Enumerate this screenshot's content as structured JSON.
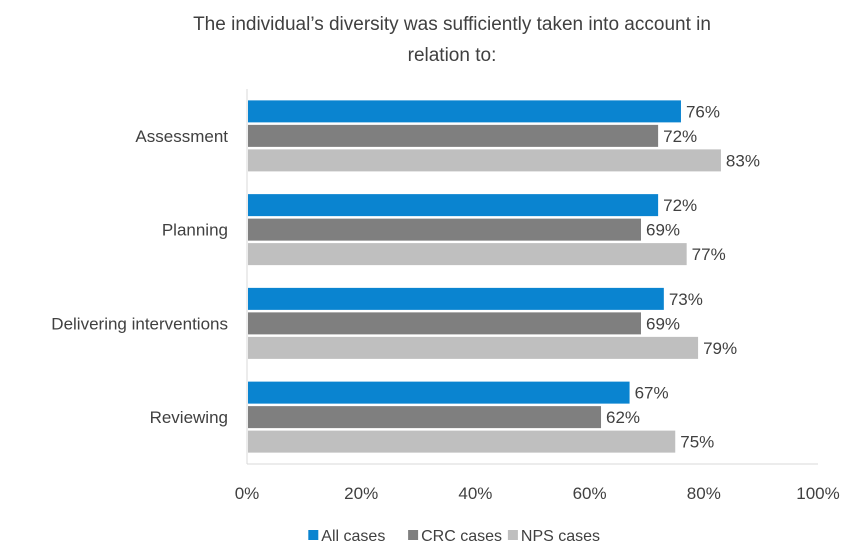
{
  "chart_data": {
    "type": "bar",
    "orientation": "horizontal",
    "title": "The individual’s diversity was sufficiently taken into account in relation to:",
    "categories": [
      "Assessment",
      "Planning",
      "Delivering interventions",
      "Reviewing"
    ],
    "series": [
      {
        "name": "All cases",
        "color": "#0a84d0",
        "values": [
          76,
          72,
          73,
          67
        ],
        "labels": [
          "76%",
          "72%",
          "73%",
          "67%"
        ]
      },
      {
        "name": "CRC cases",
        "color": "#7f7f7f",
        "values": [
          72,
          69,
          69,
          62
        ],
        "labels": [
          "72%",
          "69%",
          "69%",
          "62%"
        ]
      },
      {
        "name": "NPS cases",
        "color": "#bfbfbf",
        "values": [
          83,
          77,
          79,
          75
        ],
        "labels": [
          "83%",
          "77%",
          "79%",
          "75%"
        ]
      }
    ],
    "x_ticks": [
      "0%",
      "20%",
      "40%",
      "60%",
      "80%",
      "100%"
    ],
    "xlim": [
      0,
      100
    ],
    "legend_position": "bottom",
    "grid": false
  }
}
